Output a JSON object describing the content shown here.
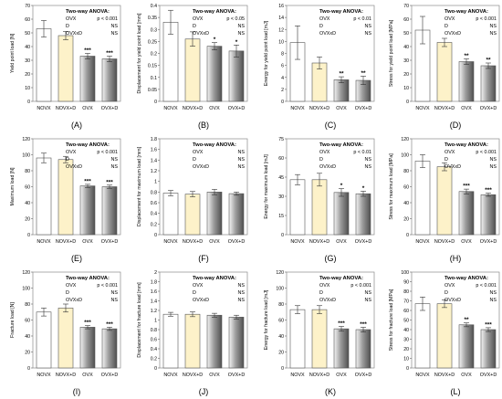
{
  "figure": {
    "categories": [
      "NOVX",
      "NOVX+D",
      "OVX",
      "OVX+D"
    ],
    "anova_title": "Two-way ANOVA:",
    "anova_terms": [
      "OVX",
      "D",
      "OVXxD"
    ],
    "bar_colors": {
      "NOVX": "#ffffff",
      "NOVX+D": "#fdf2c9",
      "OVX": "#9a9a9a",
      "OVX+D": "#9a9a9a"
    }
  },
  "chart_data": [
    {
      "panel": "(A)",
      "type": "bar",
      "ylabel": "Yield point load [N]",
      "ylim": [
        0,
        70
      ],
      "yticks": [
        0,
        10,
        20,
        30,
        40,
        50,
        60,
        70
      ],
      "values": [
        53,
        48,
        33,
        31
      ],
      "errors": [
        6,
        3,
        2,
        2
      ],
      "sig": [
        "",
        "",
        "***",
        "***"
      ],
      "anova": [
        "p < 0.001",
        "NS",
        "NS"
      ]
    },
    {
      "panel": "(B)",
      "type": "bar",
      "ylabel": "Displacement for yield point load [mm]",
      "ylim": [
        0,
        0.4
      ],
      "yticks": [
        0,
        0.05,
        0.1,
        0.15,
        0.2,
        0.25,
        0.3,
        0.35,
        0.4
      ],
      "values": [
        0.33,
        0.26,
        0.23,
        0.21
      ],
      "errors": [
        0.05,
        0.03,
        0.015,
        0.025
      ],
      "sig": [
        "",
        "",
        "*",
        "*"
      ],
      "anova": [
        "p < 0.05",
        "NS",
        "NS"
      ]
    },
    {
      "panel": "(C)",
      "type": "bar",
      "ylabel": "Energy for yield point load [mJ]",
      "ylim": [
        0,
        16
      ],
      "yticks": [
        0,
        2,
        4,
        6,
        8,
        10,
        12,
        14,
        16
      ],
      "values": [
        9.8,
        6.4,
        3.6,
        3.5
      ],
      "errors": [
        2.8,
        1.0,
        0.5,
        0.7
      ],
      "sig": [
        "",
        "",
        "**",
        "**"
      ],
      "anova": [
        "p < 0.01",
        "NS",
        "NS"
      ]
    },
    {
      "panel": "(D)",
      "type": "bar",
      "ylabel": "Stress for yield point load [MPa]",
      "ylim": [
        0,
        70
      ],
      "yticks": [
        0,
        10,
        20,
        30,
        40,
        50,
        60,
        70
      ],
      "values": [
        52,
        43,
        29,
        26
      ],
      "errors": [
        10,
        3,
        2,
        2
      ],
      "sig": [
        "",
        "",
        "**",
        "**"
      ],
      "anova": [
        "p < 0.001",
        "NS",
        "NS"
      ]
    },
    {
      "panel": "(E)",
      "type": "bar",
      "ylabel": "Maximum load [N]",
      "ylim": [
        0,
        120
      ],
      "yticks": [
        0,
        20,
        40,
        60,
        80,
        100,
        120
      ],
      "values": [
        96,
        94,
        61,
        60
      ],
      "errors": [
        6,
        4,
        2,
        2
      ],
      "sig": [
        "",
        "",
        "***",
        "***"
      ],
      "anova": [
        "p < 0.001",
        "NS",
        "NS"
      ]
    },
    {
      "panel": "(F)",
      "type": "bar",
      "ylabel": "Displacement for maximum load [mm]",
      "ylim": [
        0,
        1.8
      ],
      "yticks": [
        0,
        0.2,
        0.4,
        0.6,
        0.8,
        1,
        1.2,
        1.4,
        1.6,
        1.8
      ],
      "values": [
        0.78,
        0.76,
        0.8,
        0.77
      ],
      "errors": [
        0.05,
        0.05,
        0.05,
        0.03
      ],
      "sig": [
        "",
        "",
        "",
        ""
      ],
      "anova": [
        "NS",
        "NS",
        "NS"
      ]
    },
    {
      "panel": "(G)",
      "type": "bar",
      "ylabel": "Energy for maximum load [mJ]",
      "ylim": [
        0,
        75
      ],
      "yticks": [
        0,
        15,
        30,
        45,
        60,
        75
      ],
      "values": [
        43,
        43,
        33,
        32
      ],
      "errors": [
        4,
        5,
        3,
        2
      ],
      "sig": [
        "",
        "",
        "*",
        "*"
      ],
      "anova": [
        "p < 0.01",
        "NS",
        "NS"
      ]
    },
    {
      "panel": "(H)",
      "type": "bar",
      "ylabel": "Stress for maximum load [MPa]",
      "ylim": [
        0,
        120
      ],
      "yticks": [
        0,
        20,
        40,
        60,
        80,
        100,
        120
      ],
      "values": [
        92,
        85,
        54,
        50
      ],
      "errors": [
        8,
        5,
        3,
        2
      ],
      "sig": [
        "",
        "",
        "***",
        "***"
      ],
      "anova": [
        "p < 0.001",
        "NS",
        "NS"
      ]
    },
    {
      "panel": "(I)",
      "type": "bar",
      "ylabel": "Fracture load [N]",
      "ylim": [
        0,
        120
      ],
      "yticks": [
        0,
        20,
        40,
        60,
        80,
        100,
        120
      ],
      "values": [
        70,
        75,
        51,
        49
      ],
      "errors": [
        5,
        5,
        2,
        2
      ],
      "sig": [
        "",
        "",
        "***",
        "***"
      ],
      "anova": [
        "p < 0.001",
        "NS",
        "NS"
      ]
    },
    {
      "panel": "(J)",
      "type": "bar",
      "ylabel": "Displacement for fracture load [mm]",
      "ylim": [
        0,
        2
      ],
      "yticks": [
        0,
        0.2,
        0.4,
        0.6,
        0.8,
        1,
        1.2,
        1.4,
        1.6,
        1.8,
        2
      ],
      "values": [
        1.12,
        1.12,
        1.1,
        1.06
      ],
      "errors": [
        0.04,
        0.05,
        0.04,
        0.04
      ],
      "sig": [
        "",
        "",
        "",
        ""
      ],
      "anova": [
        "NS",
        "NS",
        "NS"
      ]
    },
    {
      "panel": "(K)",
      "type": "bar",
      "ylabel": "Energy for fracture load [mJ]",
      "ylim": [
        0,
        120
      ],
      "yticks": [
        0,
        20,
        40,
        60,
        80,
        100,
        120
      ],
      "values": [
        73,
        73,
        49,
        48
      ],
      "errors": [
        5,
        5,
        3,
        3
      ],
      "sig": [
        "",
        "",
        "***",
        "***"
      ],
      "anova": [
        "p < 0.001",
        "NS",
        "NS"
      ]
    },
    {
      "panel": "(L)",
      "type": "bar",
      "ylabel": "Stress for fracture load [MPa]",
      "ylim": [
        0,
        100
      ],
      "yticks": [
        0,
        10,
        20,
        30,
        40,
        50,
        60,
        70,
        80,
        90,
        100
      ],
      "values": [
        67,
        67,
        45,
        40
      ],
      "errors": [
        7,
        4,
        2,
        2
      ],
      "sig": [
        "",
        "",
        "**",
        "***"
      ],
      "anova": [
        "p < 0.001",
        "NS",
        "NS"
      ]
    }
  ]
}
